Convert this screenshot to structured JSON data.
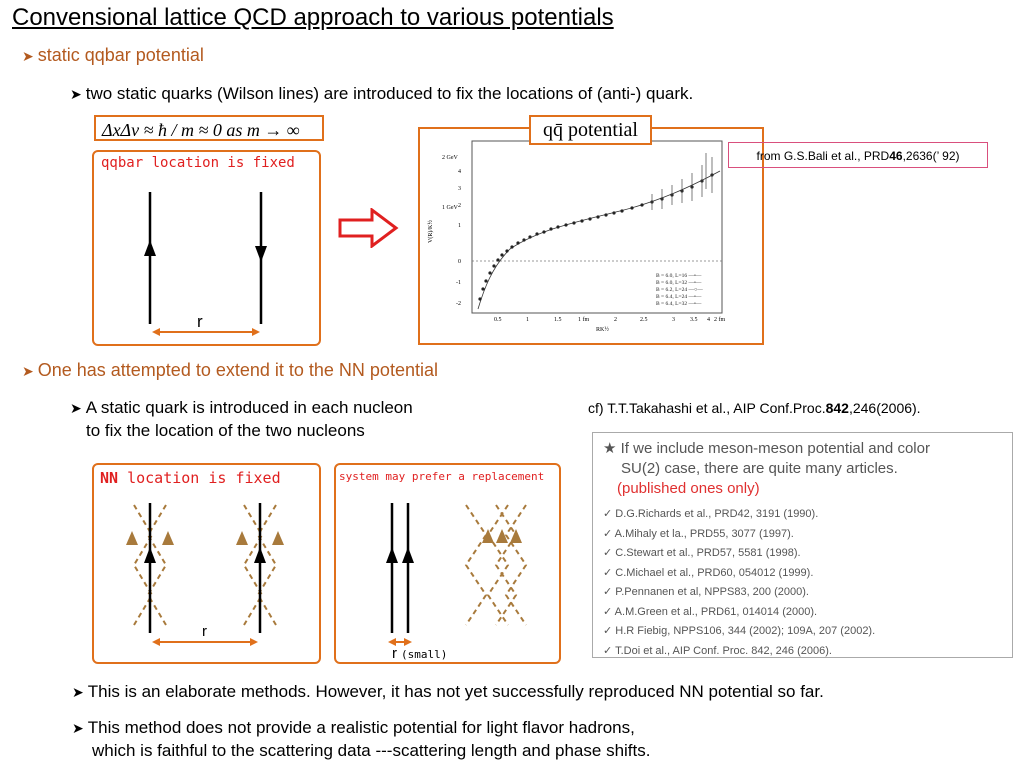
{
  "title": "Convensional lattice QCD approach to various potentials",
  "bullet_static": "static qqbar potential",
  "sub_static": "two static quarks (Wilson lines) are introduced to fix the locations of (anti-) quark.",
  "formula": "ΔxΔv ≈ ħ / m ≈ 0  as m → ∞",
  "qqbar_box": {
    "caption": "qqbar location is fixed",
    "r_label": "r"
  },
  "plot": {
    "label": "qq̄  potential",
    "ylabel": "V(R)/K^½",
    "xlabel": "RK^½",
    "y_ticks": [
      "2 GeV",
      "4",
      "3",
      "2",
      "1 GeV",
      "1",
      "0",
      "-1",
      "-2"
    ],
    "x_ticks": [
      "0.5",
      "1",
      "1.5",
      "1 fm",
      "2",
      "2.5",
      "3",
      "3.5",
      "4",
      "2 fm"
    ],
    "legend": [
      "B = 6.0, L=16",
      "B = 6.0, L=32",
      "B = 6.2, L=24",
      "B = 6.4, L=24",
      "B = 6.4, L=32"
    ]
  },
  "ref_bali": {
    "prefix": "from G.S.Bali et al., PRD",
    "volume": "46",
    "suffix": ",2636(’ 92)"
  },
  "bullet_nn": "One has attempted to extend it to the NN potential",
  "sub_nn_line1": "A static quark is introduced in each nucleon",
  "sub_nn_line2": "to fix the location of the two nucleons",
  "ref_takahashi": {
    "prefix": "cf) T.T.Takahashi et al., AIP Conf.Proc.",
    "volume": "842",
    "suffix": ",246(2006)."
  },
  "nn_box": {
    "caption_bold": "NN",
    "caption_rest": " location is fixed",
    "r_label": "r"
  },
  "replace_box": {
    "caption": "system may prefer a replacement",
    "r_label": "r",
    "r_note": "(small)"
  },
  "articles": {
    "intro_line1": "★ If we include meson-meson potential and color",
    "intro_line2": "SU(2) case, there are quite many articles.",
    "intro_red": "(published ones only)",
    "items": [
      "D.G.Richards et al., PRD42, 3191 (1990).",
      "A.Mihaly et la., PRD55, 3077 (1997).",
      "C.Stewart et al., PRD57, 5581 (1998).",
      "C.Michael et al., PRD60, 054012 (1999).",
      "P.Pennanen et al, NPPS83, 200 (2000).",
      "A.M.Green et al., PRD61, 014014 (2000).",
      "H.R Fiebig, NPPS106, 344 (2002); 109A, 207 (2002).",
      "T.Doi et al., AIP Conf. Proc. 842, 246 (2006)."
    ]
  },
  "bottom_1": "This is an elaborate methods. However, it has not yet successfully reproduced NN potential so far.",
  "bottom_2_line1": "This method does not provide a realistic potential for light flavor hadrons,",
  "bottom_2_line2": "which is faithful to the scattering data ---scattering length and phase shifts.",
  "colors": {
    "accent_orange": "#e0701b",
    "bullet_text": "#b35a1f",
    "quark_brown": "#a87a3c",
    "red_arrow": "#e02020"
  }
}
